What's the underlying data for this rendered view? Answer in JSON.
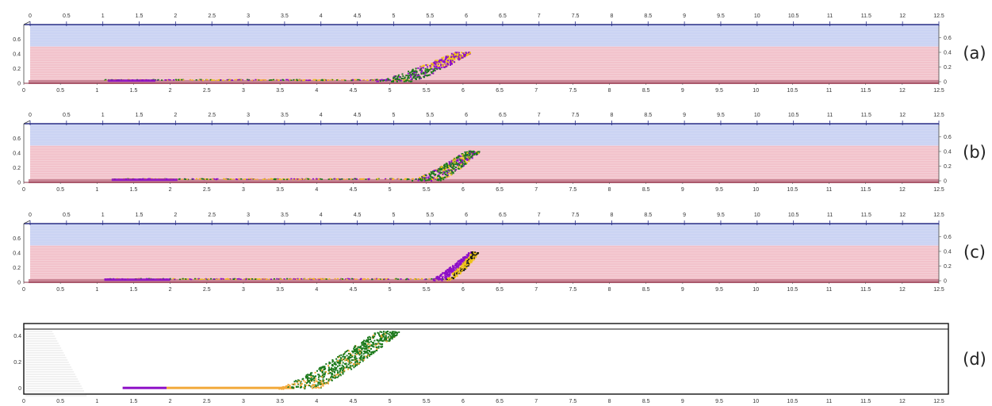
{
  "panels": [
    {
      "label": "(a)",
      "style": "box"
    },
    {
      "label": "(b)",
      "style": "box"
    },
    {
      "label": "(c)",
      "style": "box"
    },
    {
      "label": "(d)",
      "style": "plain"
    }
  ],
  "colors": {
    "water": "#f2c2cb",
    "water_grid": "#f7dde2",
    "bottom_band": "#c98595",
    "air": "#c7d0f2",
    "air_grid": "#dfe4f8",
    "frame": "#2a2f86",
    "purple": "#8e10c7",
    "green": "#1c7a1c",
    "yellow": "#f0c419",
    "orange": "#f2a93b",
    "black": "#1a1a1a"
  },
  "chart_data": {
    "type": "scatter",
    "x_ticks": [
      "0",
      "0.5",
      "1",
      "1.5",
      "2",
      "2.5",
      "3",
      "3.5",
      "4",
      "4.5",
      "5",
      "5.5",
      "6",
      "6.5",
      "7",
      "7.5",
      "8",
      "8.5",
      "9",
      "9.5",
      "10",
      "10.5",
      "11",
      "11.5",
      "12",
      "12.5"
    ],
    "y_ticks_left": [
      "0",
      "0.2",
      "0.4",
      "0.6"
    ],
    "y_ticks_right": [
      "0",
      "0.2",
      "0.4",
      "0.6"
    ],
    "y_ticks_d": [
      "0",
      "0.2",
      "0.4"
    ],
    "xlim": [
      0,
      12.5
    ],
    "ylim": [
      0,
      0.8
    ],
    "ylim_d": [
      -0.02,
      0.47
    ],
    "water_level": 0.5
  }
}
